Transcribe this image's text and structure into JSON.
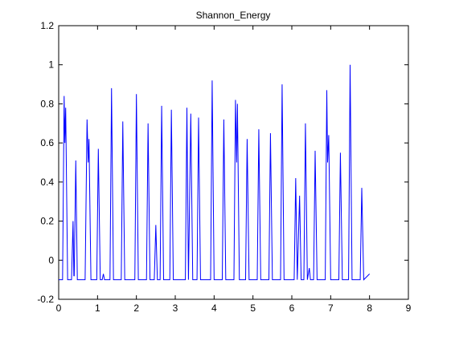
{
  "chart_data": {
    "type": "line",
    "title": "Shannon_Energy",
    "x": [
      0,
      0.1,
      0.14,
      0.16,
      0.18,
      0.23,
      0.33,
      0.37,
      0.39,
      0.4,
      0.44,
      0.48,
      0.68,
      0.73,
      0.76,
      0.78,
      0.83,
      0.98,
      1.02,
      1.07,
      1.12,
      1.15,
      1.18,
      1.32,
      1.36,
      1.41,
      1.61,
      1.65,
      1.7,
      1.96,
      2.0,
      2.05,
      2.26,
      2.3,
      2.35,
      2.46,
      2.5,
      2.54,
      2.61,
      2.65,
      2.7,
      2.86,
      2.9,
      2.95,
      3.26,
      3.3,
      3.34,
      3.4,
      3.45,
      3.56,
      3.6,
      3.65,
      3.91,
      3.95,
      4.0,
      4.21,
      4.25,
      4.3,
      4.51,
      4.55,
      4.58,
      4.6,
      4.65,
      4.81,
      4.85,
      4.9,
      5.11,
      5.15,
      5.2,
      5.41,
      5.45,
      5.5,
      5.71,
      5.75,
      5.8,
      6.06,
      6.1,
      6.14,
      6.2,
      6.24,
      6.31,
      6.35,
      6.4,
      6.45,
      6.48,
      6.56,
      6.6,
      6.65,
      6.86,
      6.9,
      6.92,
      6.95,
      7.0,
      7.21,
      7.25,
      7.3,
      7.46,
      7.5,
      7.55,
      7.76,
      7.8,
      7.85,
      8.0
    ],
    "series": [
      {
        "color": "#0000ff",
        "values": [
          -0.1,
          -0.1,
          0.84,
          0.6,
          0.78,
          -0.1,
          -0.1,
          0.2,
          -0.08,
          -0.08,
          0.51,
          -0.1,
          -0.1,
          0.72,
          0.5,
          0.62,
          -0.1,
          -0.1,
          0.57,
          -0.1,
          -0.1,
          -0.07,
          -0.1,
          -0.1,
          0.88,
          -0.1,
          -0.1,
          0.71,
          -0.1,
          -0.1,
          0.85,
          -0.1,
          -0.1,
          0.7,
          -0.1,
          -0.1,
          0.18,
          -0.1,
          -0.1,
          0.79,
          -0.1,
          -0.1,
          0.77,
          -0.1,
          -0.1,
          0.78,
          -0.1,
          0.75,
          -0.1,
          -0.1,
          0.73,
          -0.1,
          -0.1,
          0.92,
          -0.1,
          -0.1,
          0.72,
          -0.1,
          -0.1,
          0.82,
          0.5,
          0.8,
          -0.1,
          -0.1,
          0.62,
          -0.1,
          -0.1,
          0.67,
          -0.1,
          -0.1,
          0.65,
          -0.1,
          -0.1,
          0.9,
          -0.1,
          -0.1,
          0.42,
          -0.1,
          0.33,
          -0.1,
          -0.1,
          0.7,
          -0.1,
          -0.04,
          -0.1,
          -0.1,
          0.56,
          -0.1,
          -0.1,
          0.87,
          0.5,
          0.64,
          -0.1,
          -0.1,
          0.55,
          -0.1,
          -0.1,
          1.0,
          -0.1,
          -0.1,
          0.37,
          -0.1,
          -0.07
        ]
      }
    ],
    "xlim": [
      0,
      9
    ],
    "xticks": [
      0,
      1,
      2,
      3,
      4,
      5,
      6,
      7,
      8,
      9
    ],
    "ylim": [
      -0.2,
      1.2
    ],
    "yticks": [
      -0.2,
      0,
      0.2,
      0.4,
      0.6,
      0.8,
      1,
      1.2
    ]
  }
}
